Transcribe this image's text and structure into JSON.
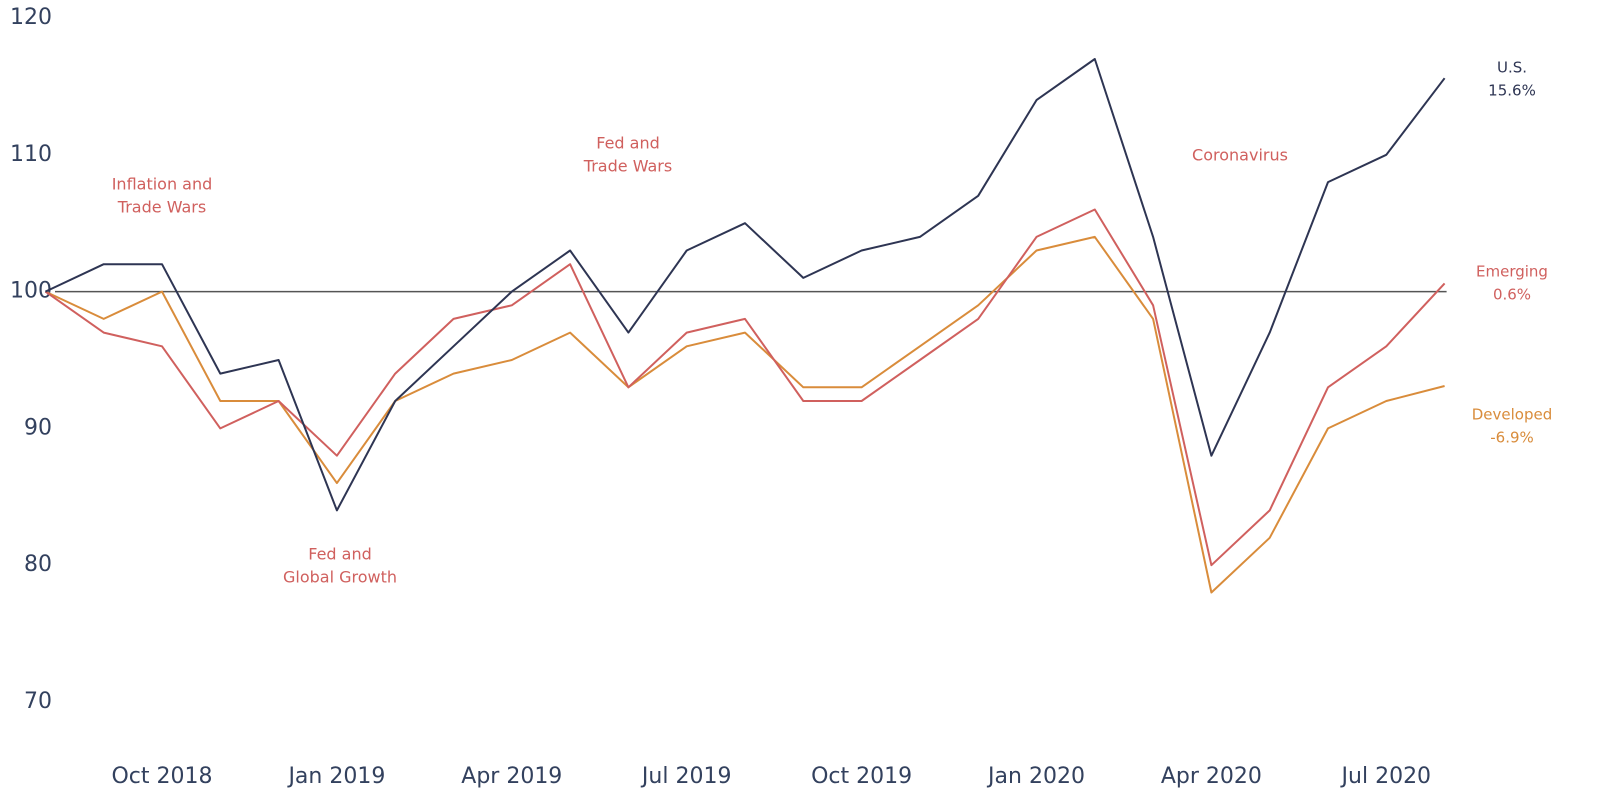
{
  "chart_data": {
    "type": "line",
    "x": [
      "2018-08",
      "2018-09",
      "2018-10",
      "2018-11",
      "2018-12",
      "2019-01",
      "2019-02",
      "2019-03",
      "2019-04",
      "2019-05",
      "2019-06",
      "2019-07",
      "2019-08",
      "2019-09",
      "2019-10",
      "2019-11",
      "2019-12",
      "2020-01",
      "2020-02",
      "2020-03",
      "2020-04",
      "2020-05",
      "2020-06",
      "2020-07",
      "2020-08"
    ],
    "series": [
      {
        "name": "U.S.",
        "change_label": "15.6%",
        "color": "#2e3553",
        "values": [
          100,
          102,
          102,
          94,
          95,
          84,
          92,
          96,
          100,
          103,
          97,
          103,
          105,
          101,
          103,
          104,
          107,
          114,
          117,
          104,
          88,
          97,
          108,
          110,
          115.6
        ]
      },
      {
        "name": "Emerging",
        "change_label": "0.6%",
        "color": "#d0605e",
        "values": [
          100,
          97,
          96,
          90,
          92,
          88,
          94,
          98,
          99,
          102,
          93,
          97,
          98,
          92,
          92,
          95,
          98,
          104,
          106,
          99,
          80,
          84,
          93,
          96,
          100.6
        ]
      },
      {
        "name": "Developed",
        "change_label": "-6.9%",
        "color": "#d98c3b",
        "values": [
          100,
          98,
          100,
          92,
          92,
          86,
          92,
          94,
          95,
          97,
          93,
          96,
          97,
          93,
          93,
          96,
          99,
          103,
          104,
          98,
          78,
          82,
          90,
          92,
          93.1
        ]
      }
    ],
    "ylim": [
      67,
      121
    ],
    "yticks": [
      70,
      80,
      90,
      100,
      110,
      120
    ],
    "xticks": [
      {
        "value": "2018-10",
        "label": "Oct 2018"
      },
      {
        "value": "2019-01",
        "label": "Jan 2019"
      },
      {
        "value": "2019-04",
        "label": "Apr 2019"
      },
      {
        "value": "2019-07",
        "label": "Jul 2019"
      },
      {
        "value": "2019-10",
        "label": "Oct 2019"
      },
      {
        "value": "2020-01",
        "label": "Jan 2020"
      },
      {
        "value": "2020-04",
        "label": "Apr 2020"
      },
      {
        "value": "2020-07",
        "label": "Jul 2020"
      }
    ],
    "reference_line": 100,
    "annotations": [
      {
        "lines": [
          "Inflation and",
          "Trade Wars"
        ]
      },
      {
        "lines": [
          "Fed and",
          "Global Growth"
        ]
      },
      {
        "lines": [
          "Fed and",
          "Trade Wars"
        ]
      },
      {
        "lines": [
          "Coronavirus"
        ]
      }
    ]
  }
}
